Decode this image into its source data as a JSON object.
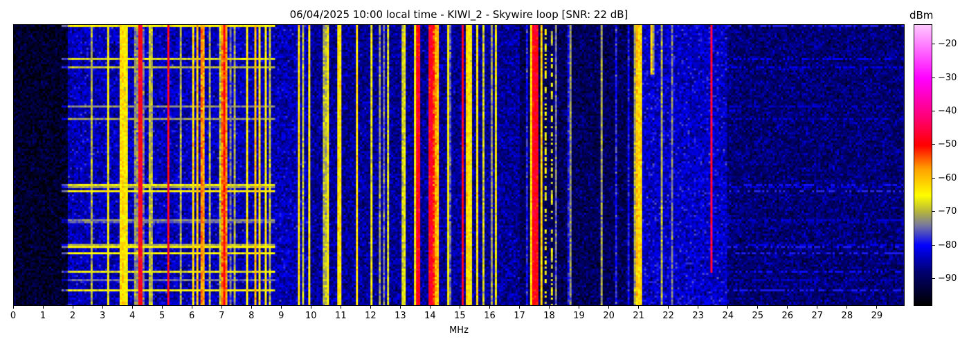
{
  "chart_data": {
    "type": "heatmap",
    "title": "06/04/2025 10:00 local time - KIWI_2 - Skywire loop [SNR: 22 dB]",
    "xlabel": "MHz",
    "xlim": [
      0,
      30
    ],
    "xticks": [
      "0",
      "1",
      "2",
      "3",
      "4",
      "5",
      "6",
      "7",
      "8",
      "9",
      "10",
      "11",
      "12",
      "13",
      "14",
      "15",
      "16",
      "17",
      "18",
      "19",
      "20",
      "21",
      "22",
      "23",
      "24",
      "25",
      "26",
      "27",
      "28",
      "29"
    ],
    "colorbar": {
      "label": "dBm",
      "range": [
        -98,
        -14
      ],
      "ticks": [
        "−20",
        "−30",
        "−40",
        "−50",
        "−60",
        "−70",
        "−80",
        "−90"
      ],
      "tick_values": [
        -20,
        -30,
        -40,
        -50,
        -60,
        -70,
        -80,
        -90
      ],
      "colors": [
        [
          -98,
          "#000000"
        ],
        [
          -88,
          "#000070"
        ],
        [
          -80,
          "#0000ff"
        ],
        [
          -74,
          "#7878a0"
        ],
        [
          -70,
          "#b4b440"
        ],
        [
          -65,
          "#ffff00"
        ],
        [
          -57,
          "#ffa000"
        ],
        [
          -50,
          "#ff0000"
        ],
        [
          -42,
          "#ff0070"
        ],
        [
          -30,
          "#ff00ff"
        ],
        [
          -14,
          "#ffc8ff"
        ]
      ]
    },
    "noise_floor_dbm": [
      {
        "from": 0,
        "to": 1.8,
        "level": -94
      },
      {
        "from": 1.8,
        "to": 10,
        "level": -84
      },
      {
        "from": 10,
        "to": 17,
        "level": -86
      },
      {
        "from": 17,
        "to": 21,
        "level": -90
      },
      {
        "from": 21,
        "to": 24,
        "level": -83
      },
      {
        "from": 24,
        "to": 30,
        "level": -88
      }
    ],
    "signals_mhz_dbm": [
      [
        3.6,
        -63
      ],
      [
        3.65,
        -62
      ],
      [
        3.72,
        -64
      ],
      [
        4.25,
        -48
      ],
      [
        4.6,
        -70
      ],
      [
        5.2,
        -48
      ],
      [
        6.05,
        -62
      ],
      [
        6.15,
        -60
      ],
      [
        6.3,
        -56
      ],
      [
        6.4,
        -58
      ],
      [
        7.0,
        -60
      ],
      [
        7.05,
        -55
      ],
      [
        7.1,
        -50
      ],
      [
        7.15,
        -57
      ],
      [
        7.85,
        -64
      ],
      [
        8.1,
        -60
      ],
      [
        8.25,
        -62
      ],
      [
        8.45,
        -64
      ],
      [
        8.6,
        -70
      ],
      [
        9.6,
        -62
      ],
      [
        9.95,
        -63
      ],
      [
        10.45,
        -70
      ],
      [
        10.95,
        -63
      ],
      [
        11.55,
        -62
      ],
      [
        12.05,
        -66
      ],
      [
        13.5,
        -64
      ],
      [
        13.6,
        -48
      ],
      [
        13.65,
        -60
      ],
      [
        14.0,
        -48
      ],
      [
        14.05,
        -47
      ],
      [
        14.1,
        -52
      ],
      [
        14.2,
        -58
      ],
      [
        14.27,
        -60
      ],
      [
        14.6,
        -64
      ],
      [
        15.1,
        -48
      ],
      [
        15.25,
        -62
      ],
      [
        15.33,
        -64
      ],
      [
        15.6,
        -63
      ],
      [
        16.05,
        -72
      ],
      [
        17.4,
        -62
      ],
      [
        17.5,
        -48
      ],
      [
        17.6,
        -49
      ],
      [
        17.75,
        -62
      ],
      [
        17.9,
        -66
      ],
      [
        18.1,
        -68
      ],
      [
        20.95,
        -60
      ],
      [
        21.05,
        -62
      ],
      [
        21.5,
        -72
      ],
      [
        22.15,
        -74
      ],
      [
        23.45,
        -46
      ]
    ]
  }
}
